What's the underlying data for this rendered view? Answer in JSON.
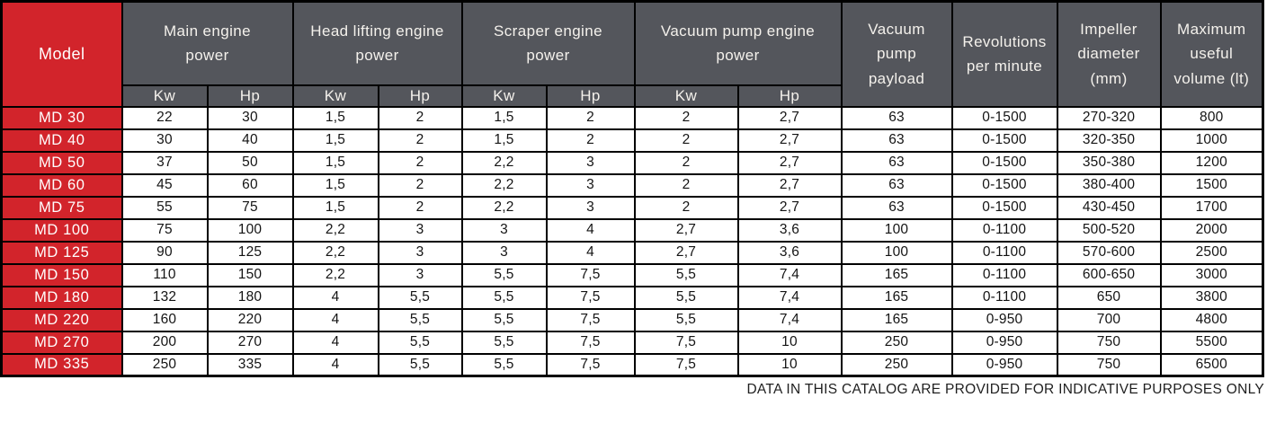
{
  "colors": {
    "accent_red": "#d2242b",
    "header_gray": "#54565c",
    "border_black": "#000000",
    "header_text": "#f4f1ec",
    "cell_text": "#141414"
  },
  "footer": {
    "note": "DATA IN THIS CATALOG ARE PROVIDED FOR INDICATIVE PURPOSES ONLY"
  },
  "table": {
    "corner_header": "Model",
    "group_headers": [
      {
        "label": "Main engine\npower"
      },
      {
        "label": "Head lifting engine\npower"
      },
      {
        "label": "Scraper engine\npower"
      },
      {
        "label": "Vacuum pump engine\npower"
      }
    ],
    "span_headers": [
      "Vacuum\npump\npayload",
      "Revolutions\nper minute",
      "Impeller\ndiameter\n(mm)",
      "Maximum\nuseful\nvolume (lt)"
    ],
    "unit_headers": [
      "Kw",
      "Hp",
      "Kw",
      "Hp",
      "Kw",
      "Hp",
      "Kw",
      "Hp"
    ],
    "rows": [
      {
        "model": "MD 30",
        "values": [
          "22",
          "30",
          "1,5",
          "2",
          "1,5",
          "2",
          "2",
          "2,7",
          "63",
          "0-1500",
          "270-320",
          "800"
        ]
      },
      {
        "model": "MD 40",
        "values": [
          "30",
          "40",
          "1,5",
          "2",
          "1,5",
          "2",
          "2",
          "2,7",
          "63",
          "0-1500",
          "320-350",
          "1000"
        ]
      },
      {
        "model": "MD 50",
        "values": [
          "37",
          "50",
          "1,5",
          "2",
          "2,2",
          "3",
          "2",
          "2,7",
          "63",
          "0-1500",
          "350-380",
          "1200"
        ]
      },
      {
        "model": "MD 60",
        "values": [
          "45",
          "60",
          "1,5",
          "2",
          "2,2",
          "3",
          "2",
          "2,7",
          "63",
          "0-1500",
          "380-400",
          "1500"
        ]
      },
      {
        "model": "MD 75",
        "values": [
          "55",
          "75",
          "1,5",
          "2",
          "2,2",
          "3",
          "2",
          "2,7",
          "63",
          "0-1500",
          "430-450",
          "1700"
        ]
      },
      {
        "model": "MD 100",
        "values": [
          "75",
          "100",
          "2,2",
          "3",
          "3",
          "4",
          "2,7",
          "3,6",
          "100",
          "0-1100",
          "500-520",
          "2000"
        ]
      },
      {
        "model": "MD 125",
        "values": [
          "90",
          "125",
          "2,2",
          "3",
          "3",
          "4",
          "2,7",
          "3,6",
          "100",
          "0-1100",
          "570-600",
          "2500"
        ]
      },
      {
        "model": "MD 150",
        "values": [
          "110",
          "150",
          "2,2",
          "3",
          "5,5",
          "7,5",
          "5,5",
          "7,4",
          "165",
          "0-1100",
          "600-650",
          "3000"
        ]
      },
      {
        "model": "MD 180",
        "values": [
          "132",
          "180",
          "4",
          "5,5",
          "5,5",
          "7,5",
          "5,5",
          "7,4",
          "165",
          "0-1100",
          "650",
          "3800"
        ]
      },
      {
        "model": "MD 220",
        "values": [
          "160",
          "220",
          "4",
          "5,5",
          "5,5",
          "7,5",
          "5,5",
          "7,4",
          "165",
          "0-950",
          "700",
          "4800"
        ]
      },
      {
        "model": "MD 270",
        "values": [
          "200",
          "270",
          "4",
          "5,5",
          "5,5",
          "7,5",
          "7,5",
          "10",
          "250",
          "0-950",
          "750",
          "5500"
        ]
      },
      {
        "model": "MD 335",
        "values": [
          "250",
          "335",
          "4",
          "5,5",
          "5,5",
          "7,5",
          "7,5",
          "10",
          "250",
          "0-950",
          "750",
          "6500"
        ]
      }
    ]
  }
}
